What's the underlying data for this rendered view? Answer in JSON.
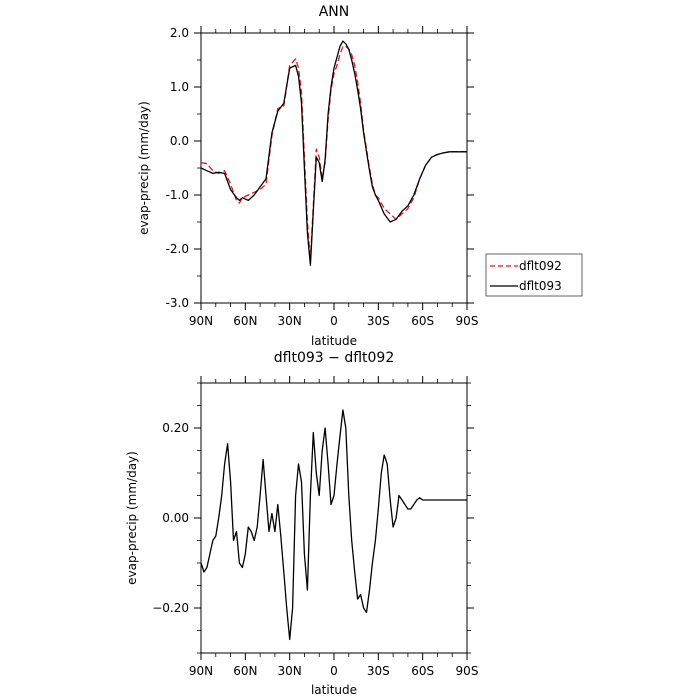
{
  "chart_data": [
    {
      "type": "line",
      "title": "ANN",
      "xlabel": "latitude",
      "ylabel": "evap-precip (mm/day)",
      "xlim": [
        0,
        180
      ],
      "ylim": [
        -3.0,
        2.0
      ],
      "xticks": [
        0,
        30,
        60,
        90,
        120,
        150,
        180
      ],
      "xtick_labels": [
        "90N",
        "60N",
        "30N",
        "0",
        "30S",
        "60S",
        "90S"
      ],
      "yticks": [
        -3.0,
        -2.0,
        -1.0,
        0.0,
        1.0,
        2.0
      ],
      "ytick_labels": [
        "-3.0",
        "-2.0",
        "-1.0",
        "0.0",
        "1.0",
        "2.0"
      ],
      "legend_position": "outside-right",
      "series": [
        {
          "name": "dflt092",
          "color": "#e8141c",
          "dash": "dashed",
          "x": [
            0,
            4,
            8,
            12,
            16,
            20,
            24,
            26,
            28,
            32,
            36,
            40,
            44,
            48,
            52,
            56,
            60,
            64,
            66,
            68,
            70,
            72,
            74,
            76,
            78,
            80,
            82,
            84,
            86,
            88,
            90,
            92,
            94,
            96,
            98,
            100,
            102,
            104,
            106,
            108,
            110,
            112,
            114,
            116,
            118,
            120,
            124,
            128,
            132,
            136,
            140,
            144,
            148,
            152,
            156,
            160,
            164,
            168,
            172,
            176,
            180
          ],
          "y": [
            -0.4,
            -0.42,
            -0.55,
            -0.6,
            -0.55,
            -0.8,
            -1.1,
            -1.15,
            -1.05,
            -1.0,
            -0.95,
            -0.9,
            -0.8,
            0.1,
            0.6,
            0.65,
            1.4,
            1.52,
            1.35,
            0.9,
            -0.3,
            -1.5,
            -2.2,
            -1.2,
            -0.15,
            -0.3,
            -0.7,
            -0.4,
            0.4,
            0.95,
            1.25,
            1.4,
            1.6,
            1.75,
            1.75,
            1.7,
            1.6,
            1.4,
            1.1,
            0.7,
            0.2,
            -0.15,
            -0.5,
            -0.8,
            -1.0,
            -1.05,
            -1.25,
            -1.35,
            -1.45,
            -1.35,
            -1.25,
            -1.05,
            -0.7,
            -0.45,
            -0.3,
            -0.25,
            -0.22,
            -0.2,
            -0.2,
            -0.2,
            -0.2
          ]
        },
        {
          "name": "dflt093",
          "color": "#000000",
          "dash": "solid",
          "x": [
            0,
            4,
            8,
            12,
            16,
            20,
            24,
            26,
            28,
            32,
            36,
            40,
            44,
            48,
            52,
            56,
            60,
            64,
            66,
            68,
            70,
            72,
            74,
            76,
            78,
            80,
            82,
            84,
            86,
            88,
            90,
            92,
            94,
            96,
            98,
            100,
            102,
            104,
            106,
            108,
            110,
            112,
            114,
            116,
            118,
            120,
            124,
            128,
            132,
            136,
            140,
            144,
            148,
            152,
            156,
            160,
            164,
            168,
            172,
            176,
            180
          ],
          "y": [
            -0.5,
            -0.55,
            -0.6,
            -0.58,
            -0.6,
            -0.9,
            -1.05,
            -1.1,
            -1.05,
            -1.1,
            -1.0,
            -0.85,
            -0.7,
            0.15,
            0.55,
            0.7,
            1.35,
            1.4,
            1.2,
            0.7,
            -0.5,
            -1.7,
            -2.3,
            -1.3,
            -0.3,
            -0.4,
            -0.75,
            -0.35,
            0.5,
            1.0,
            1.35,
            1.55,
            1.75,
            1.85,
            1.8,
            1.7,
            1.5,
            1.25,
            0.95,
            0.6,
            0.15,
            -0.2,
            -0.55,
            -0.85,
            -1.0,
            -1.1,
            -1.35,
            -1.5,
            -1.45,
            -1.3,
            -1.2,
            -1.0,
            -0.7,
            -0.45,
            -0.3,
            -0.25,
            -0.22,
            -0.2,
            -0.2,
            -0.2,
            -0.2
          ]
        }
      ]
    },
    {
      "type": "line",
      "title": "dflt093 − dflt092",
      "xlabel": "latitude",
      "ylabel": "evap-precip (mm/day)",
      "xlim": [
        0,
        180
      ],
      "ylim": [
        -0.3,
        0.3
      ],
      "xticks": [
        0,
        30,
        60,
        90,
        120,
        150,
        180
      ],
      "xtick_labels": [
        "90N",
        "60N",
        "30N",
        "0",
        "30S",
        "60S",
        "90S"
      ],
      "yticks": [
        -0.2,
        0.0,
        0.2
      ],
      "ytick_labels": [
        "−0.20",
        "0.00",
        "0.20"
      ],
      "series": [
        {
          "color": "#000000",
          "dash": "solid",
          "x": [
            0,
            2,
            4,
            6,
            8,
            10,
            12,
            14,
            16,
            18,
            20,
            22,
            24,
            26,
            28,
            30,
            32,
            34,
            36,
            38,
            40,
            42,
            44,
            46,
            48,
            50,
            52,
            54,
            56,
            58,
            60,
            62,
            64,
            66,
            68,
            70,
            72,
            74,
            76,
            78,
            80,
            82,
            84,
            86,
            88,
            90,
            92,
            94,
            96,
            98,
            100,
            102,
            104,
            106,
            108,
            110,
            112,
            114,
            116,
            118,
            120,
            122,
            124,
            126,
            128,
            130,
            132,
            134,
            136,
            138,
            140,
            142,
            144,
            146,
            148,
            150,
            152,
            154,
            156,
            158,
            160,
            162,
            164,
            166,
            168,
            170,
            172,
            174,
            176,
            178,
            180
          ],
          "y": [
            -0.1,
            -0.12,
            -0.11,
            -0.08,
            -0.05,
            -0.04,
            0.0,
            0.05,
            0.12,
            0.165,
            0.08,
            -0.05,
            -0.03,
            -0.1,
            -0.11,
            -0.08,
            -0.02,
            -0.03,
            -0.05,
            -0.02,
            0.05,
            0.13,
            0.05,
            -0.03,
            0.01,
            -0.03,
            0.03,
            -0.04,
            -0.12,
            -0.2,
            -0.27,
            -0.2,
            0.05,
            0.12,
            0.08,
            -0.08,
            -0.16,
            0.05,
            0.19,
            0.1,
            0.05,
            0.15,
            0.2,
            0.12,
            0.03,
            0.05,
            0.12,
            0.18,
            0.24,
            0.2,
            0.05,
            -0.05,
            -0.12,
            -0.18,
            -0.17,
            -0.2,
            -0.21,
            -0.16,
            -0.1,
            -0.05,
            0.02,
            0.1,
            0.14,
            0.12,
            0.04,
            -0.02,
            0.0,
            0.05,
            0.04,
            0.03,
            0.02,
            0.02,
            0.03,
            0.04,
            0.045,
            0.04,
            0.04,
            0.04,
            0.04,
            0.04,
            0.04,
            0.04,
            0.04,
            0.04,
            0.04,
            0.04,
            0.04,
            0.04,
            0.04,
            0.04,
            0.04
          ]
        }
      ]
    }
  ]
}
